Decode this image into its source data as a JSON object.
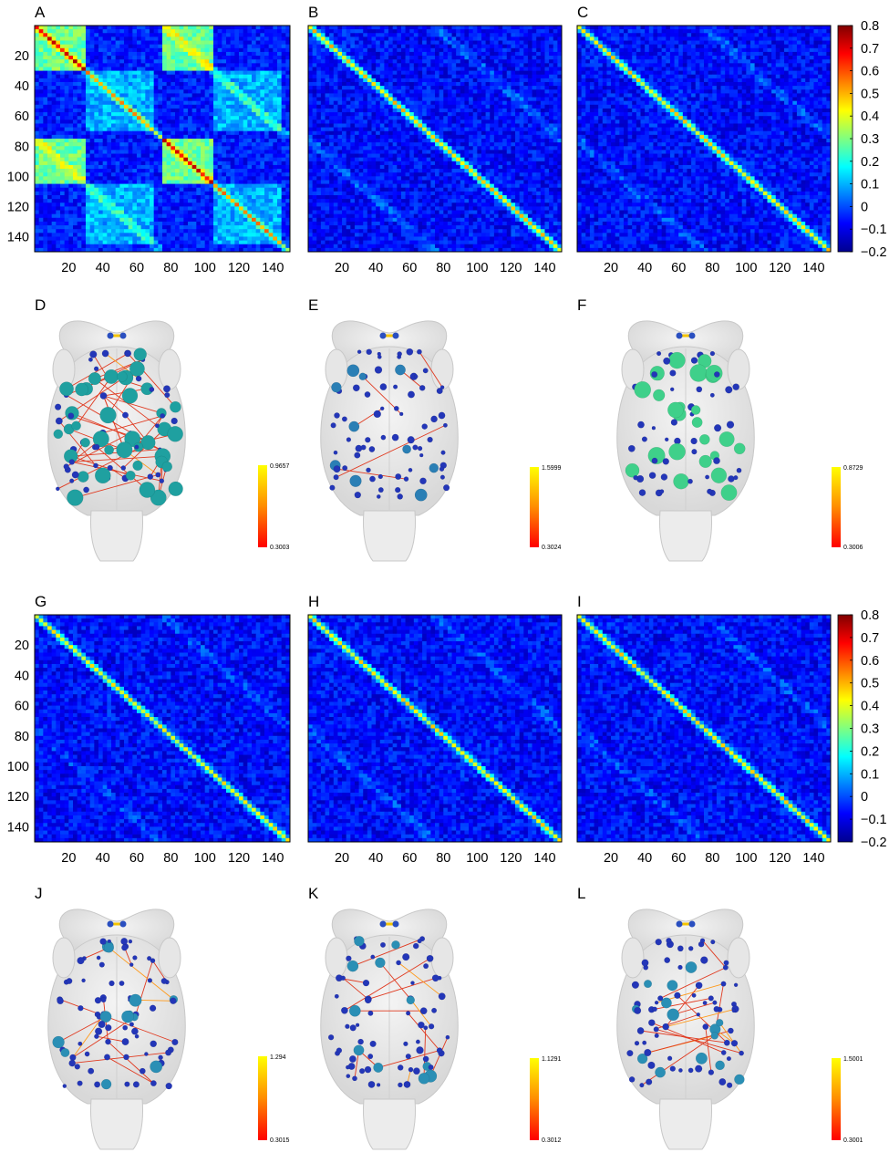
{
  "chart_data": {
    "type": "heatmap",
    "matrix_size": 150,
    "x_ticks": [
      20,
      40,
      60,
      80,
      100,
      120,
      140
    ],
    "y_ticks": [
      20,
      40,
      60,
      80,
      100,
      120,
      140
    ],
    "x_tick_labels": [
      "20",
      "40",
      "60",
      "80",
      "100",
      "120",
      "140"
    ],
    "y_tick_labels": [
      "20",
      "40",
      "60",
      "80",
      "100",
      "120",
      "140"
    ],
    "colorbar": {
      "colormap": "jet",
      "range": [
        -0.2,
        0.8
      ],
      "ticks": [
        0.8,
        0.7,
        0.6,
        0.5,
        0.4,
        0.3,
        0.2,
        0.1,
        0,
        -0.1,
        -0.2
      ],
      "tick_labels": [
        "0.8",
        "0.7",
        "0.6",
        "0.5",
        "0.4",
        "0.3",
        "0.2",
        "0.1",
        "0",
        "−0.1",
        "−0.2"
      ]
    },
    "matrices": [
      {
        "label": "A",
        "pattern": "block-structured, high correlation blocks",
        "strength": 1.0
      },
      {
        "label": "B",
        "pattern": "diagonal and off-diagonal bands",
        "strength": 0.5
      },
      {
        "label": "C",
        "pattern": "diagonal and off-diagonal bands",
        "strength": 0.45
      },
      {
        "label": "G",
        "pattern": "weak diffuse structure",
        "strength": 0.35
      },
      {
        "label": "H",
        "pattern": "weak diagonal structure",
        "strength": 0.4
      },
      {
        "label": "I",
        "pattern": "weak diagonal structure",
        "strength": 0.4
      }
    ],
    "networks": [
      {
        "label": "D",
        "edge_colorbar_max": "0.9657",
        "edge_colorbar_min": "0.3003"
      },
      {
        "label": "E",
        "edge_colorbar_max": "1.5999",
        "edge_colorbar_min": "0.3024"
      },
      {
        "label": "F",
        "edge_colorbar_max": "0.8729",
        "edge_colorbar_min": "0.3006"
      },
      {
        "label": "J",
        "edge_colorbar_max": "1.294",
        "edge_colorbar_min": "0.3015"
      },
      {
        "label": "K",
        "edge_colorbar_max": "1.1291",
        "edge_colorbar_min": "0.3012"
      },
      {
        "label": "L",
        "edge_colorbar_max": "1.5001",
        "edge_colorbar_min": "0.3001"
      }
    ]
  }
}
